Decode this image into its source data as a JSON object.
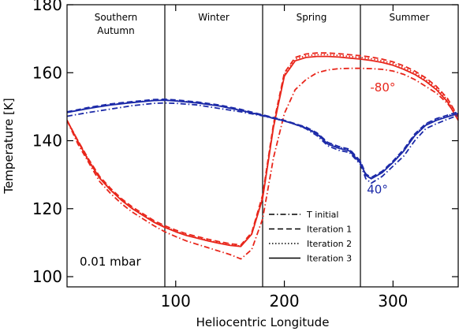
{
  "chart_data": {
    "type": "line",
    "title": "",
    "xlabel": "Heliocentric Longitude",
    "ylabel": "Temperature [K]",
    "xlim": [
      0,
      360
    ],
    "ylim": [
      97,
      180
    ],
    "x_ticks": [
      100,
      200,
      300
    ],
    "y_ticks": [
      100,
      120,
      140,
      160,
      180
    ],
    "grid": false,
    "season_dividers": [
      90,
      180,
      270
    ],
    "seasons": [
      {
        "label_lines": [
          "Southern",
          "Autumn"
        ],
        "x_center": 45
      },
      {
        "label_lines": [
          "Winter"
        ],
        "x_center": 135
      },
      {
        "label_lines": [
          "Spring"
        ],
        "x_center": 225
      },
      {
        "label_lines": [
          "Summer"
        ],
        "x_center": 315
      }
    ],
    "annotation": "0.01 mbar",
    "legend": {
      "position": "bottom-right",
      "entries": [
        {
          "label": "T initial",
          "dash": "dashdot"
        },
        {
          "label": "Iteration 1",
          "dash": "dashed"
        },
        {
          "label": "Iteration 2",
          "dash": "dotted"
        },
        {
          "label": "Iteration 3",
          "dash": "solid"
        }
      ]
    },
    "series_groups": [
      {
        "label": "-80°",
        "color": "#e8261b",
        "label_at": {
          "x": 279,
          "y": 154.5
        },
        "series": [
          {
            "style": "dashdot",
            "x": [
              0,
              10,
              20,
              30,
              40,
              50,
              60,
              70,
              80,
              90,
              100,
              110,
              120,
              130,
              140,
              150,
              160,
              170,
              180,
              190,
              200,
              210,
              220,
              230,
              240,
              250,
              260,
              270,
              280,
              290,
              300,
              310,
              320,
              330,
              340,
              350,
              360
            ],
            "y": [
              146,
              139,
              133.5,
              128,
              124.5,
              121.5,
              119,
              117,
              115,
              113.2,
              111.8,
              110.5,
              109.5,
              108.5,
              107.5,
              106.5,
              105.2,
              108,
              117,
              135,
              148,
              155,
              158,
              160,
              160.8,
              161.2,
              161.3,
              161.3,
              161.2,
              161,
              160.5,
              159.5,
              158,
              156,
              154,
              151,
              147
            ]
          },
          {
            "style": "dashed",
            "x": [
              0,
              10,
              20,
              30,
              40,
              50,
              60,
              70,
              80,
              90,
              100,
              110,
              120,
              130,
              140,
              150,
              160,
              170,
              180,
              190,
              200,
              210,
              220,
              230,
              240,
              250,
              260,
              270,
              280,
              290,
              300,
              310,
              320,
              330,
              340,
              350,
              360
            ],
            "y": [
              146,
              140,
              134.5,
              129.5,
              126,
              123,
              120.5,
              118.5,
              116.5,
              115,
              113.7,
              112.6,
              111.8,
              111,
              110.3,
              109.7,
              109.3,
              113,
              124,
              145,
              160,
              164.5,
              165.5,
              165.8,
              165.8,
              165.6,
              165.3,
              165,
              164.6,
              164,
              163.2,
              162,
              160.5,
              158.5,
              156,
              152.5,
              147
            ]
          },
          {
            "style": "dotted",
            "x": [
              0,
              10,
              20,
              30,
              40,
              50,
              60,
              70,
              80,
              90,
              100,
              110,
              120,
              130,
              140,
              150,
              160,
              170,
              180,
              190,
              200,
              210,
              220,
              230,
              240,
              250,
              260,
              270,
              280,
              290,
              300,
              310,
              320,
              330,
              340,
              350,
              360
            ],
            "y": [
              146,
              140,
              134.2,
              129.2,
              125.7,
              122.7,
              120.2,
              118.2,
              116.2,
              114.7,
              113.4,
              112.3,
              111.5,
              110.7,
              110,
              109.4,
              109,
              112.7,
              123.5,
              144.5,
              159.5,
              164,
              165,
              165.3,
              165.3,
              165.1,
              164.8,
              164.5,
              164.1,
              163.5,
              162.7,
              161.5,
              160,
              158,
              155.5,
              152,
              147
            ]
          },
          {
            "style": "solid",
            "x": [
              0,
              10,
              20,
              30,
              40,
              50,
              60,
              70,
              80,
              90,
              100,
              110,
              120,
              130,
              140,
              150,
              160,
              170,
              180,
              190,
              200,
              210,
              220,
              230,
              240,
              250,
              260,
              270,
              280,
              290,
              300,
              310,
              320,
              330,
              340,
              350,
              360
            ],
            "y": [
              146,
              139.8,
              134,
              129,
              125.5,
              122.5,
              120,
              118,
              116,
              114.5,
              113.2,
              112.1,
              111.3,
              110.5,
              109.8,
              109.2,
              108.9,
              112.5,
              123,
              144,
              159,
              163.5,
              164.5,
              164.8,
              164.8,
              164.6,
              164.3,
              164,
              163.6,
              163,
              162.2,
              161,
              159.5,
              157.5,
              155,
              151.5,
              146
            ]
          }
        ]
      },
      {
        "label": "40°",
        "color": "#1c2aa8",
        "label_at": {
          "x": 276,
          "y": 124.5
        },
        "series": [
          {
            "style": "dashdot",
            "x": [
              0,
              20,
              40,
              60,
              80,
              90,
              100,
              120,
              140,
              160,
              180,
              200,
              210,
              220,
              230,
              240,
              250,
              260,
              270,
              275,
              280,
              290,
              300,
              310,
              320,
              330,
              340,
              350,
              360
            ],
            "y": [
              147.2,
              148.3,
              149.3,
              150.3,
              151,
              151.1,
              151,
              150.5,
              149.5,
              148.5,
              147.3,
              145.8,
              144.8,
              143.5,
              141.5,
              138.5,
              137.2,
              136.5,
              133,
              128.8,
              127.5,
              129.5,
              132.5,
              135.5,
              140,
              143.5,
              145,
              146.3,
              147.5
            ]
          },
          {
            "style": "dashed",
            "x": [
              0,
              20,
              40,
              60,
              80,
              90,
              100,
              120,
              140,
              160,
              180,
              200,
              210,
              220,
              230,
              240,
              250,
              260,
              270,
              275,
              280,
              290,
              300,
              310,
              320,
              330,
              340,
              350,
              360
            ],
            "y": [
              148.5,
              149.8,
              150.8,
              151.5,
              152.1,
              152.2,
              152,
              151.4,
              150.5,
              149.2,
              147.6,
              146,
              145,
              144,
              142.3,
              139.5,
              138.3,
              137.5,
              134,
              130.2,
              129.2,
              131,
              134,
              137.5,
              142,
              145,
              146.5,
              147.5,
              148.5
            ]
          },
          {
            "style": "dotted",
            "x": [
              0,
              20,
              40,
              60,
              80,
              90,
              100,
              120,
              140,
              160,
              180,
              200,
              210,
              220,
              230,
              240,
              250,
              260,
              270,
              275,
              280,
              290,
              300,
              310,
              320,
              330,
              340,
              350,
              360
            ],
            "y": [
              148.3,
              149.6,
              150.6,
              151.3,
              151.9,
              152,
              151.8,
              151.2,
              150.3,
              149,
              147.5,
              145.9,
              144.9,
              143.9,
              142.2,
              139.3,
              138.1,
              137.3,
              133.8,
              130,
              129,
              130.8,
              133.8,
              137.3,
              141.8,
              144.8,
              146.3,
              147.3,
              148.3
            ]
          },
          {
            "style": "solid",
            "x": [
              0,
              20,
              40,
              60,
              80,
              90,
              100,
              120,
              140,
              160,
              180,
              200,
              210,
              220,
              230,
              240,
              250,
              260,
              270,
              275,
              280,
              290,
              300,
              310,
              320,
              330,
              340,
              350,
              360
            ],
            "y": [
              148.3,
              149.5,
              150.5,
              151.2,
              151.8,
              151.9,
              151.7,
              151.1,
              150.2,
              148.9,
              147.4,
              145.8,
              144.8,
              143.7,
              142,
              139,
              137.8,
              137,
              133.4,
              129.8,
              128.8,
              130.6,
              133.6,
              137,
              141.5,
              144.5,
              146,
              147,
              148
            ]
          }
        ]
      }
    ]
  }
}
